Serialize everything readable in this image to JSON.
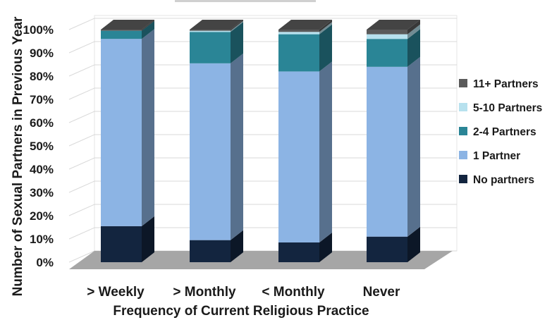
{
  "chart_data": {
    "type": "bar",
    "stacked": "percent",
    "three_d": true,
    "categories": [
      "> Weekly",
      "> Monthly",
      "< Monthly",
      "Never"
    ],
    "series": [
      {
        "name": "No partners",
        "color": "#13253f",
        "values": [
          15.5,
          9.5,
          8.5,
          11
        ]
      },
      {
        "name": "1 Partner",
        "color": "#8cb4e4",
        "values": [
          80.5,
          76,
          73.5,
          73
        ]
      },
      {
        "name": "2-4 Partners",
        "color": "#2a8596",
        "values": [
          3.5,
          13.5,
          16,
          12
        ]
      },
      {
        "name": "5-10 Partners",
        "color": "#b7e1ee",
        "values": [
          0,
          0.5,
          1,
          2
        ]
      },
      {
        "name": "11+ Partners",
        "color": "#5a5a5a",
        "values": [
          0.5,
          0.5,
          1,
          2
        ]
      }
    ],
    "xlabel": "Frequency of Current Religious Practice",
    "ylabel": "Number of Sexual Partners in Previous Year",
    "ylim": [
      0,
      100
    ],
    "yticks": [
      "0%",
      "10%",
      "20%",
      "30%",
      "40%",
      "50%",
      "60%",
      "70%",
      "80%",
      "90%",
      "100%"
    ],
    "grid": true,
    "legend_position": "right"
  }
}
